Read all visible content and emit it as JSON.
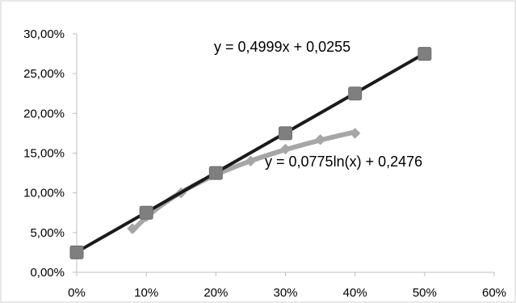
{
  "chart_data": {
    "type": "scatter",
    "title": "",
    "xlabel": "",
    "ylabel": "",
    "xlim": [
      0,
      0.6
    ],
    "ylim": [
      0,
      0.3
    ],
    "x_ticks": [
      0,
      0.1,
      0.2,
      0.3,
      0.4,
      0.5,
      0.6
    ],
    "x_tick_labels": [
      "0%",
      "10%",
      "20%",
      "30%",
      "40%",
      "50%",
      "60%"
    ],
    "y_ticks": [
      0,
      0.05,
      0.1,
      0.15,
      0.2,
      0.25,
      0.3
    ],
    "y_tick_labels": [
      "0,00%",
      "5,00%",
      "10,00%",
      "15,00%",
      "20,00%",
      "25,00%",
      "30,00%"
    ],
    "grid": false,
    "legend": "none",
    "series": [
      {
        "marker": "square",
        "color": "#7f7f7f",
        "x": [
          0,
          0.1,
          0.2,
          0.3,
          0.4,
          0.5
        ],
        "y": [
          0.025,
          0.075,
          0.125,
          0.175,
          0.225,
          0.275
        ]
      },
      {
        "marker": "diamond",
        "color": "#a6a6a6",
        "x": [
          0.08,
          0.1,
          0.15,
          0.2,
          0.25,
          0.3,
          0.35,
          0.4
        ],
        "y": [
          0.055,
          0.07,
          0.1,
          0.125,
          0.14,
          0.155,
          0.167,
          0.175
        ]
      }
    ],
    "trendlines": [
      {
        "kind": "linear",
        "color": "#1a1a1a",
        "slope": 0.4999,
        "intercept": 0.0255,
        "x_range": [
          0,
          0.5
        ],
        "label": "y = 0,4999x + 0,0255"
      },
      {
        "kind": "log",
        "color": "#a6a6a6",
        "a": 0.0775,
        "b": 0.2476,
        "x_range": [
          0.08,
          0.4
        ],
        "label": "y = 0,0775ln(x) + 0,2476"
      }
    ]
  }
}
